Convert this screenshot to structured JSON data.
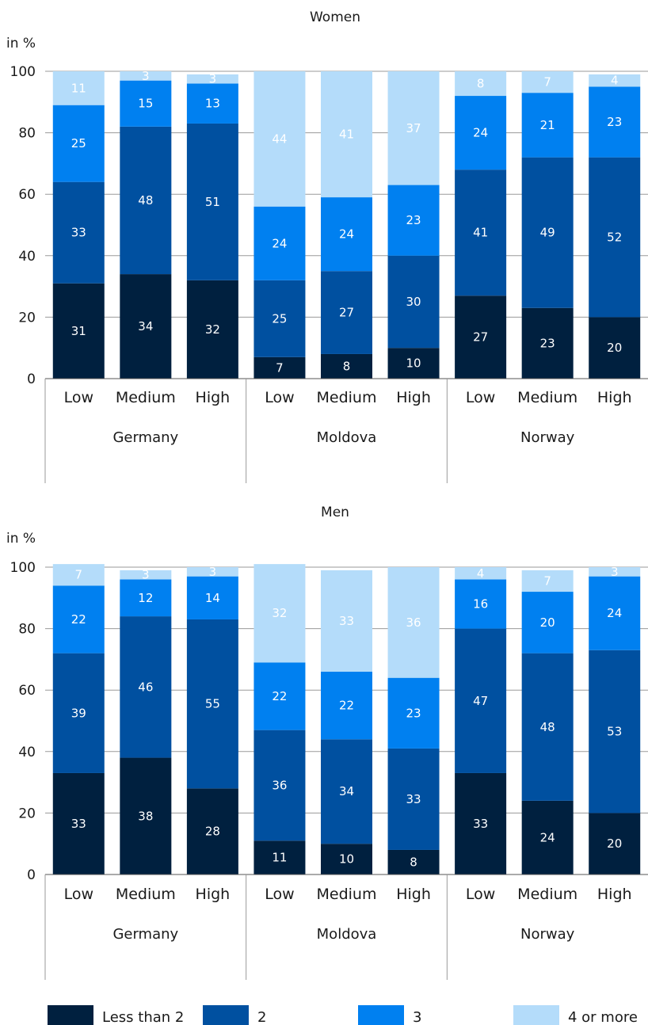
{
  "colors": {
    "less_than_2": "#00203f",
    "two": "#0050a0",
    "three": "#0080f0",
    "four_or_more": "#b4dcfa",
    "grid": "#9a9a9a",
    "axis": "#555555"
  },
  "legend": {
    "items": [
      "Less than 2",
      "2",
      "3",
      "4 or more"
    ]
  },
  "chart_data": [
    {
      "type": "bar",
      "stacked": true,
      "title": "Women",
      "ylabel": "in %",
      "ylim": [
        0,
        100
      ],
      "yticks": [
        0,
        20,
        40,
        60,
        80,
        100
      ],
      "groups": [
        "Germany",
        "Moldova",
        "Norway"
      ],
      "categories": [
        "Low",
        "Medium",
        "High",
        "Low",
        "Medium",
        "High",
        "Low",
        "Medium",
        "High"
      ],
      "series": [
        {
          "name": "Less than 2",
          "values": [
            31,
            34,
            32,
            7,
            8,
            10,
            27,
            23,
            20
          ]
        },
        {
          "name": "2",
          "values": [
            33,
            48,
            51,
            25,
            27,
            30,
            41,
            49,
            52
          ]
        },
        {
          "name": "3",
          "values": [
            25,
            15,
            13,
            24,
            24,
            23,
            24,
            21,
            23
          ]
        },
        {
          "name": "4 or more",
          "values": [
            11,
            3,
            3,
            44,
            41,
            37,
            8,
            7,
            4
          ]
        }
      ],
      "grid": true
    },
    {
      "type": "bar",
      "stacked": true,
      "title": "Men",
      "ylabel": "in %",
      "ylim": [
        0,
        100
      ],
      "yticks": [
        0,
        20,
        40,
        60,
        80,
        100
      ],
      "groups": [
        "Germany",
        "Moldova",
        "Norway"
      ],
      "categories": [
        "Low",
        "Medium",
        "High",
        "Low",
        "Medium",
        "High",
        "Low",
        "Medium",
        "High"
      ],
      "series": [
        {
          "name": "Less than 2",
          "values": [
            33,
            38,
            28,
            11,
            10,
            8,
            33,
            24,
            20
          ]
        },
        {
          "name": "2",
          "values": [
            39,
            46,
            55,
            36,
            34,
            33,
            47,
            48,
            53
          ]
        },
        {
          "name": "3",
          "values": [
            22,
            12,
            14,
            22,
            22,
            23,
            16,
            20,
            24
          ]
        },
        {
          "name": "4 or more",
          "values": [
            7,
            3,
            3,
            32,
            33,
            36,
            4,
            7,
            3
          ]
        }
      ],
      "grid": true
    }
  ]
}
